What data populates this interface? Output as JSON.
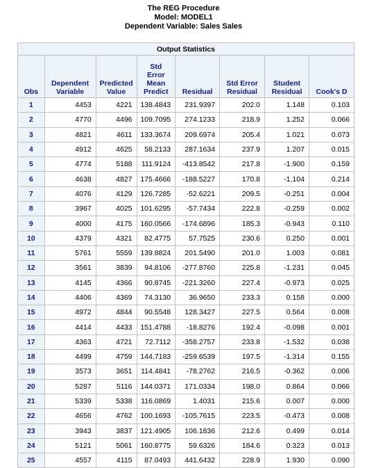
{
  "titles": {
    "line1": "The REG Procedure",
    "line2": "Model: MODEL1",
    "line3": "Dependent Variable: Sales Sales"
  },
  "table": {
    "caption": "Output Statistics",
    "headers": {
      "obs": "Obs",
      "dependent": [
        "Dependent",
        "Variable"
      ],
      "predicted": [
        "Predicted",
        "Value"
      ],
      "stderr_mean": [
        "Std",
        "Error",
        "Mean",
        "Predict"
      ],
      "residual": "Residual",
      "stderr_resid": [
        "Std Error",
        "Residual"
      ],
      "student": [
        "Student",
        "Residual"
      ],
      "cooks": "Cook's D"
    },
    "rows": [
      [
        "1",
        "4453",
        "4221",
        "138.4843",
        "231.9397",
        "202.0",
        "1.148",
        "0.103"
      ],
      [
        "2",
        "4770",
        "4496",
        "109.7095",
        "274.1233",
        "218.9",
        "1.252",
        "0.066"
      ],
      [
        "3",
        "4821",
        "4611",
        "133.3674",
        "209.6974",
        "205.4",
        "1.021",
        "0.073"
      ],
      [
        "4",
        "4912",
        "4625",
        "58.2133",
        "287.1634",
        "237.9",
        "1.207",
        "0.015"
      ],
      [
        "5",
        "4774",
        "5188",
        "111.9124",
        "-413.8542",
        "217.8",
        "-1.900",
        "0.159"
      ],
      [
        "6",
        "4638",
        "4827",
        "175.4666",
        "-188.5227",
        "170.8",
        "-1.104",
        "0.214"
      ],
      [
        "7",
        "4076",
        "4129",
        "126.7285",
        "-52.6221",
        "209.5",
        "-0.251",
        "0.004"
      ],
      [
        "8",
        "3967",
        "4025",
        "101.6295",
        "-57.7434",
        "222.8",
        "-0.259",
        "0.002"
      ],
      [
        "9",
        "4000",
        "4175",
        "160.0566",
        "-174.6896",
        "185.3",
        "-0.943",
        "0.110"
      ],
      [
        "10",
        "4379",
        "4321",
        "82.4775",
        "57.7525",
        "230.6",
        "0.250",
        "0.001"
      ],
      [
        "11",
        "5761",
        "5559",
        "139.8824",
        "201.5490",
        "201.0",
        "1.003",
        "0.081"
      ],
      [
        "12",
        "3561",
        "3839",
        "94.8106",
        "-277.8760",
        "225.8",
        "-1.231",
        "0.045"
      ],
      [
        "13",
        "4145",
        "4366",
        "90.8745",
        "-221.3260",
        "227.4",
        "-0.973",
        "0.025"
      ],
      [
        "14",
        "4406",
        "4369",
        "74.3130",
        "36.9650",
        "233.3",
        "0.158",
        "0.000"
      ],
      [
        "15",
        "4972",
        "4844",
        "90.5548",
        "128.3427",
        "227.5",
        "0.564",
        "0.008"
      ],
      [
        "16",
        "4414",
        "4433",
        "151.4788",
        "-18.8276",
        "192.4",
        "-0.098",
        "0.001"
      ],
      [
        "17",
        "4363",
        "4721",
        "72.7112",
        "-358.2757",
        "233.8",
        "-1.532",
        "0.038"
      ],
      [
        "18",
        "4499",
        "4759",
        "144.7183",
        "-259.6539",
        "197.5",
        "-1.314",
        "0.155"
      ],
      [
        "19",
        "3573",
        "3651",
        "114.4841",
        "-78.2762",
        "216.5",
        "-0.362",
        "0.006"
      ],
      [
        "20",
        "5287",
        "5116",
        "144.0371",
        "171.0334",
        "198.0",
        "0.864",
        "0.066"
      ],
      [
        "21",
        "5339",
        "5338",
        "116.0869",
        "1.4031",
        "215.6",
        "0.007",
        "0.000"
      ],
      [
        "22",
        "4656",
        "4762",
        "100.1693",
        "-105.7615",
        "223.5",
        "-0.473",
        "0.008"
      ],
      [
        "23",
        "3943",
        "3837",
        "121.4905",
        "106.1836",
        "212.6",
        "0.499",
        "0.014"
      ],
      [
        "24",
        "5121",
        "5061",
        "160.8775",
        "59.6326",
        "184.6",
        "0.323",
        "0.013"
      ],
      [
        "25",
        "4557",
        "4115",
        "87.0493",
        "441.6432",
        "228.9",
        "1.930",
        "0.090"
      ]
    ]
  }
}
